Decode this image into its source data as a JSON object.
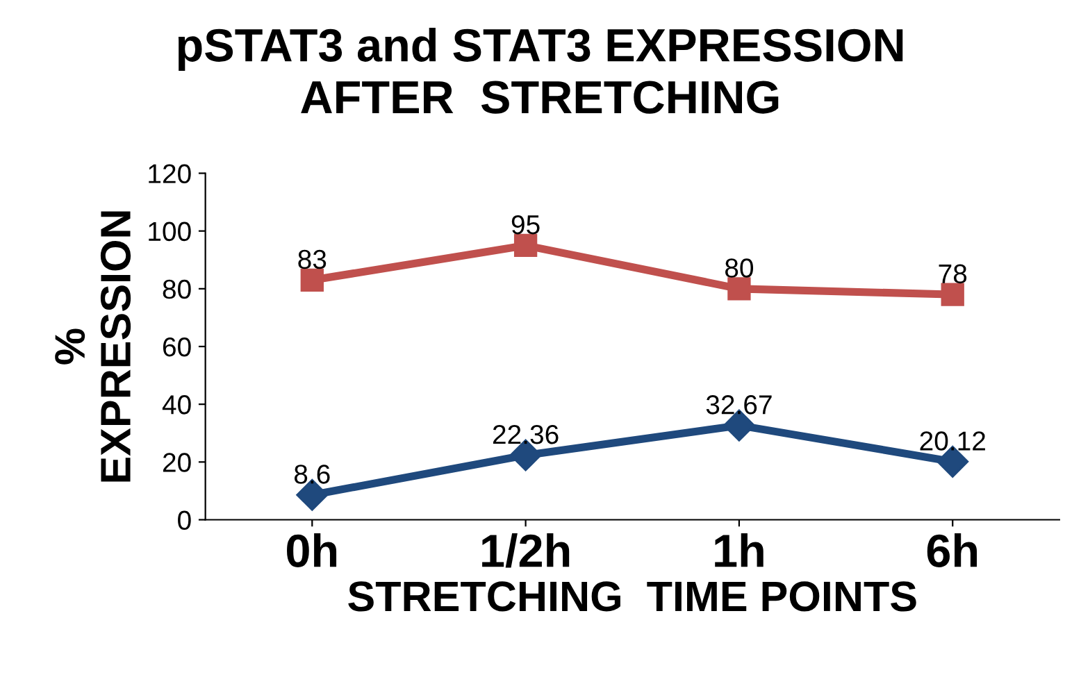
{
  "chart_data": {
    "type": "line",
    "title": "pSTAT3 and STAT3 EXPRESSION\nAFTER  STRETCHING",
    "xlabel": "STRETCHING  TIME POINTS",
    "ylabel": "%\nEXPRESSION",
    "categories": [
      "0h",
      "1/2h",
      "1h",
      "6h"
    ],
    "series": [
      {
        "color": "#c0504d",
        "marker": "square",
        "values": [
          83,
          95,
          80,
          78
        ]
      },
      {
        "color": "#1f497d",
        "marker": "diamond",
        "values": [
          8.6,
          22.36,
          32.67,
          20.12
        ]
      }
    ],
    "ylim": [
      0,
      120
    ],
    "yticks": [
      0,
      20,
      40,
      60,
      80,
      100,
      120
    ],
    "grid": false,
    "legend": false,
    "data_labels": true
  }
}
